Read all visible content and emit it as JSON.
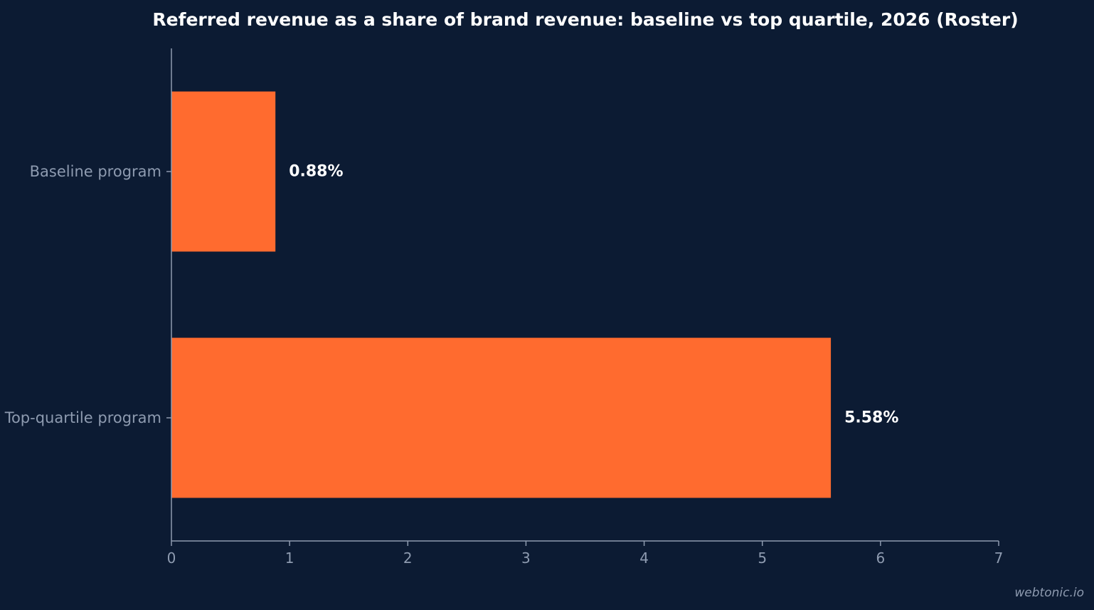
{
  "chart_data": {
    "type": "bar",
    "orientation": "horizontal",
    "title": "Referred revenue as a share of brand revenue: baseline vs top quartile, 2026 (Roster)",
    "categories": [
      "Baseline program",
      "Top-quartile program"
    ],
    "values": [
      0.88,
      5.58
    ],
    "data_labels": [
      "0.88%",
      "5.58%"
    ],
    "xlim": [
      0,
      7
    ],
    "x_ticks": [
      0,
      1,
      2,
      3,
      4,
      5,
      6,
      7
    ],
    "xlabel": "",
    "ylabel": "",
    "grid": false,
    "legend": "none",
    "colors": {
      "bar": "#ff6b2f",
      "background": "#0c1b33",
      "axis": "#8e9bb0",
      "title": "#ffffff",
      "data_label": "#ffffff"
    }
  },
  "watermark": "webtonic.io"
}
